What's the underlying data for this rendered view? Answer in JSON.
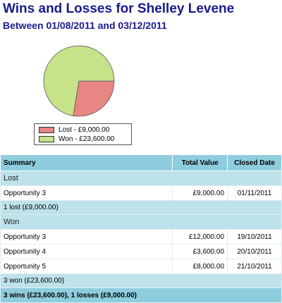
{
  "report": {
    "title": "Wins and Losses for Shelley Levene",
    "subtitle": "Between 01/08/2011 and 03/12/2011"
  },
  "colors": {
    "lost": "#e88683",
    "won": "#c6e38a",
    "header": "#8ecddd",
    "group": "#bde2ea",
    "title": "#1a1a8c"
  },
  "chart_data": {
    "type": "pie",
    "slices": [
      {
        "name": "Lost",
        "value": 9000,
        "color": "#e88683"
      },
      {
        "name": "Won",
        "value": 23600,
        "color": "#c6e38a"
      }
    ],
    "legend": [
      "Lost - £9,000.00",
      "Won - £23,600.00"
    ]
  },
  "table": {
    "headers": [
      "Summary",
      "Total Value",
      "Closed Date"
    ],
    "groups": [
      {
        "label": "Lost",
        "rows": [
          {
            "name": "Opportunity 3",
            "value": "£9,000.00",
            "date": "01/11/2011"
          }
        ],
        "subtotal": "1 lost (£9,000.00)"
      },
      {
        "label": "Won",
        "rows": [
          {
            "name": "Opportunity 3",
            "value": "£12,000.00",
            "date": "19/10/2011"
          },
          {
            "name": "Opportunity 4",
            "value": "£3,600.00",
            "date": "20/10/2011"
          },
          {
            "name": "Opportunity 5",
            "value": "£8,000.00",
            "date": "21/10/2011"
          }
        ],
        "subtotal": "3 won (£23,600.00)"
      }
    ],
    "total": "3 wins (£23,600.00), 1 losses (£9,000.00)"
  }
}
